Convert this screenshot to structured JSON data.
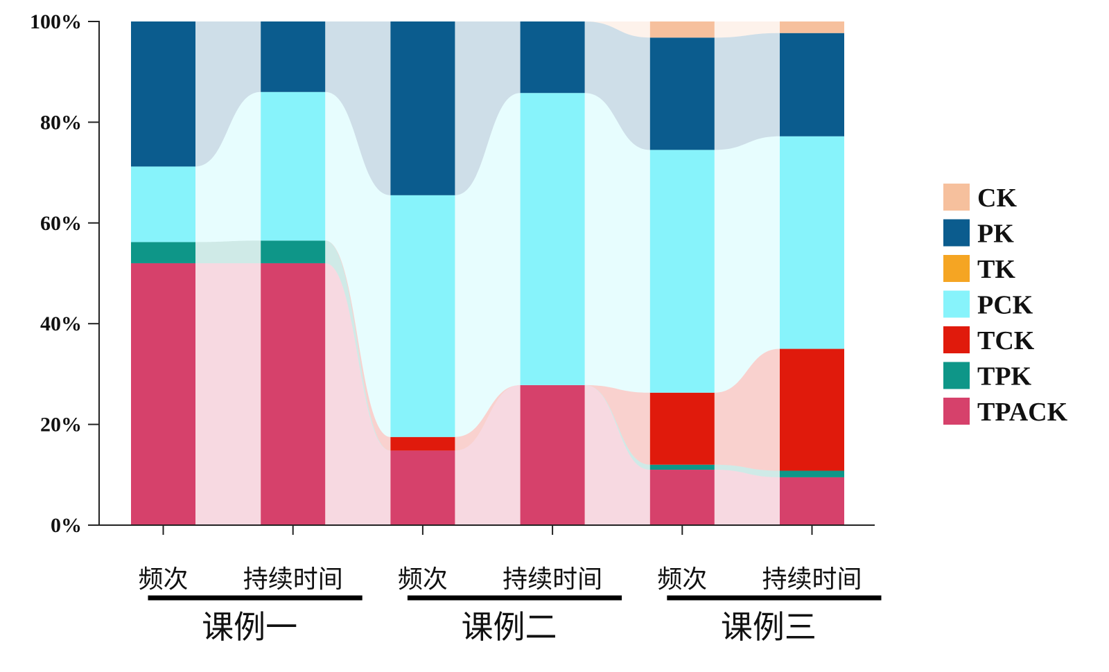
{
  "chart_data": {
    "type": "bar",
    "stacked": true,
    "normalized": true,
    "title": "",
    "xlabel": "",
    "ylabel": "",
    "ylim": [
      0,
      100
    ],
    "y_ticks": [
      "0%",
      "20%",
      "40%",
      "60%",
      "80%",
      "100%"
    ],
    "legend_position": "right",
    "groups": [
      {
        "label": "课例一",
        "categories": [
          "频次",
          "持续时间"
        ]
      },
      {
        "label": "课例二",
        "categories": [
          "频次",
          "持续时间"
        ]
      },
      {
        "label": "课例三",
        "categories": [
          "频次",
          "持续时间"
        ]
      }
    ],
    "categories": [
      "频次",
      "持续时间",
      "频次",
      "持续时间",
      "频次",
      "持续时间"
    ],
    "series": [
      {
        "name": "TPACK",
        "color": "#d6416b",
        "values": [
          52,
          52,
          14.8,
          27.8,
          11,
          9.5
        ]
      },
      {
        "name": "TPK",
        "color": "#0e9688",
        "values": [
          4.2,
          4.5,
          0,
          0,
          1,
          1.3
        ]
      },
      {
        "name": "TCK",
        "color": "#e01a0c",
        "values": [
          0,
          0,
          2.7,
          0,
          14.3,
          24.2
        ]
      },
      {
        "name": "PCK",
        "color": "#87f3fb",
        "values": [
          15,
          29.5,
          48,
          58,
          48.2,
          42.2
        ]
      },
      {
        "name": "TK",
        "color": "#f5a523",
        "values": [
          0,
          0,
          0,
          0,
          0,
          0
        ]
      },
      {
        "name": "PK",
        "color": "#0b5c8e",
        "values": [
          28.8,
          14,
          34.5,
          14.2,
          22.3,
          20.5
        ]
      },
      {
        "name": "CK",
        "color": "#f6c09d",
        "values": [
          0,
          0,
          0,
          0,
          3.2,
          2.3
        ]
      }
    ],
    "legend_order": [
      "CK",
      "PK",
      "TK",
      "PCK",
      "TCK",
      "TPK",
      "TPACK"
    ]
  }
}
